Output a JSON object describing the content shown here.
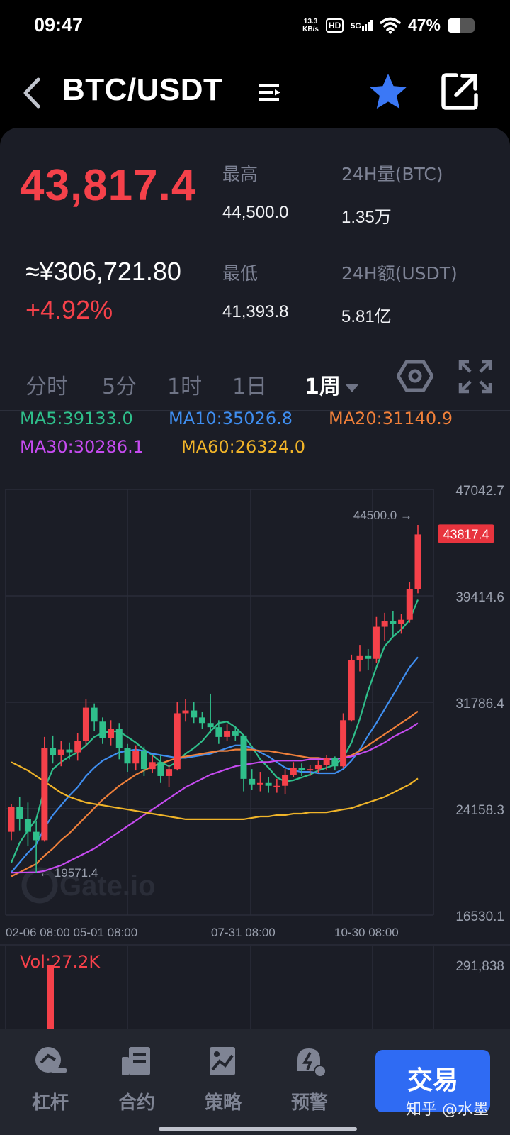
{
  "status_bar": {
    "time": "09:47",
    "net_speed_value": "13.3",
    "net_speed_unit": "KB/s",
    "hd_badge": "HD",
    "network": "5G",
    "battery": "47%",
    "battery_level": 0.47
  },
  "header": {
    "pair": "BTC/USDT",
    "icons": [
      "back-icon",
      "menu-icon",
      "star-icon",
      "share-icon"
    ],
    "star_color": "#3b78f6"
  },
  "ticker": {
    "last_price": "43,817.4",
    "cny_price": "≈¥306,721.80",
    "change": "+4.92%",
    "high_label": "最高",
    "high_value": "44,500.0",
    "low_label": "最低",
    "low_value": "41,393.8",
    "vol24_label": "24H量(BTC)",
    "vol24_value": "1.35万",
    "amt24_label": "24H额(USDT)",
    "amt24_value": "5.81亿",
    "up_color": "#f5414a"
  },
  "intervals": {
    "tabs": [
      "分时",
      "5分",
      "1时",
      "1日",
      "1周"
    ],
    "active": "1周"
  },
  "ma_legend": [
    {
      "label": "MA5:39133.0",
      "color": "#2fbf8b"
    },
    {
      "label": "MA10:35026.8",
      "color": "#3f8ef0"
    },
    {
      "label": "MA20:31140.9",
      "color": "#f0803a"
    },
    {
      "label": "MA30:30286.1",
      "color": "#c64bf0"
    },
    {
      "label": "MA60:26324.0",
      "color": "#f0b429"
    }
  ],
  "chart_data": {
    "type": "candlestick",
    "y_ticks": [
      "47042.7",
      "39414.6",
      "31786.4",
      "24158.3",
      "16530.1"
    ],
    "ylim": [
      16530.1,
      47042.7
    ],
    "x_ticks": [
      "02-06 08:00",
      "05-01 08:00",
      "07-31 08:00",
      "10-30 08:00"
    ],
    "high_marker": "44500.0",
    "low_marker": "19571.4",
    "last_price_tag": "43817.4",
    "watermark": "Gate.io",
    "grid": true,
    "candles": [
      [
        22500,
        24300,
        21900,
        24500
      ],
      [
        24300,
        23400,
        22600,
        25000
      ],
      [
        23400,
        22500,
        21500,
        24600
      ],
      [
        22500,
        21900,
        19571.4,
        23300
      ],
      [
        21900,
        28500,
        21800,
        29300
      ],
      [
        28500,
        28000,
        27400,
        29400
      ],
      [
        28000,
        28400,
        27200,
        29000
      ],
      [
        28400,
        28200,
        27700,
        28900
      ],
      [
        28200,
        29000,
        27600,
        29600
      ],
      [
        29000,
        31400,
        28700,
        32000
      ],
      [
        31400,
        30400,
        29700,
        31700
      ],
      [
        30400,
        29200,
        28800,
        30700
      ],
      [
        29200,
        29900,
        28700,
        30500
      ],
      [
        29900,
        28500,
        27700,
        30300
      ],
      [
        28500,
        27400,
        26800,
        28800
      ],
      [
        27400,
        28300,
        26900,
        28700
      ],
      [
        28300,
        27000,
        26500,
        28600
      ],
      [
        27000,
        27500,
        26700,
        28000
      ],
      [
        27500,
        26500,
        26000,
        28000
      ],
      [
        26500,
        27000,
        25700,
        27300
      ],
      [
        27000,
        31000,
        26900,
        31800
      ],
      [
        31000,
        31200,
        30400,
        32000
      ],
      [
        31200,
        30700,
        30300,
        31800
      ],
      [
        30700,
        30300,
        29900,
        31100
      ],
      [
        30300,
        30000,
        29600,
        32400
      ],
      [
        30000,
        29300,
        28800,
        30500
      ],
      [
        29300,
        29700,
        29000,
        30200
      ],
      [
        29700,
        29400,
        29000,
        30100
      ],
      [
        29400,
        26300,
        25400,
        29500
      ],
      [
        26300,
        25900,
        25500,
        27000
      ],
      [
        25900,
        26000,
        25400,
        26800
      ],
      [
        26000,
        25800,
        25300,
        26400
      ],
      [
        25800,
        25800,
        25300,
        26300
      ],
      [
        25800,
        26600,
        25200,
        27000
      ],
      [
        26600,
        27100,
        26400,
        27500
      ],
      [
        27100,
        26900,
        26500,
        27400
      ],
      [
        26900,
        27000,
        26500,
        27300
      ],
      [
        27000,
        27300,
        26700,
        27600
      ],
      [
        27300,
        27800,
        26900,
        28000
      ],
      [
        27800,
        27200,
        26900,
        27900
      ],
      [
        27200,
        30500,
        27100,
        31000
      ],
      [
        30500,
        34800,
        30400,
        35200
      ],
      [
        34800,
        35100,
        34000,
        35900
      ],
      [
        35100,
        34900,
        34100,
        35600
      ],
      [
        34900,
        37200,
        34600,
        37900
      ],
      [
        37200,
        37600,
        36200,
        38200
      ],
      [
        37600,
        37400,
        36500,
        38300
      ],
      [
        37400,
        37700,
        36700,
        38100
      ],
      [
        37700,
        39900,
        37500,
        40400
      ],
      [
        39900,
        43817.4,
        39600,
        44500
      ]
    ],
    "ma_series": {
      "MA5": [
        20300,
        21700,
        22600,
        23400,
        25600,
        27000,
        27500,
        27900,
        28200,
        28700,
        29300,
        29600,
        29700,
        29700,
        29300,
        28900,
        28400,
        28000,
        27500,
        27200,
        27500,
        28100,
        28500,
        29000,
        29700,
        30300,
        30400,
        30000,
        29400,
        28600,
        27700,
        27100,
        26400,
        26100,
        26200,
        26400,
        26600,
        26900,
        27100,
        27300,
        27800,
        28900,
        30600,
        32600,
        34300,
        35800,
        36500,
        37000,
        37700,
        39133
      ],
      "MA10": [
        19600,
        20300,
        21000,
        21600,
        22800,
        23700,
        24400,
        25100,
        25700,
        26500,
        27100,
        27600,
        27900,
        28200,
        28300,
        28400,
        28300,
        28100,
        28000,
        27900,
        27800,
        27800,
        27900,
        28000,
        28100,
        28300,
        28500,
        28700,
        28700,
        28500,
        28200,
        27900,
        27500,
        27100,
        26900,
        26800,
        26800,
        26700,
        26700,
        26700,
        27000,
        27600,
        28400,
        29400,
        30300,
        31300,
        32300,
        33300,
        34300,
        35026.8
      ],
      "MA20": [
        19300,
        19600,
        19900,
        20200,
        20800,
        21300,
        21900,
        22400,
        23000,
        23600,
        24200,
        24800,
        25300,
        25800,
        26200,
        26600,
        26900,
        27200,
        27400,
        27600,
        27800,
        27900,
        28000,
        28100,
        28200,
        28300,
        28300,
        28400,
        28400,
        28400,
        28300,
        28300,
        28200,
        28100,
        28000,
        27900,
        27800,
        27800,
        27700,
        27700,
        27800,
        28000,
        28300,
        28700,
        29100,
        29500,
        29900,
        30300,
        30700,
        31140.9
      ],
      "MA30": [
        19571.4,
        19580,
        19590,
        19600,
        19700,
        19900,
        20100,
        20400,
        20700,
        21000,
        21300,
        21700,
        22100,
        22500,
        22900,
        23300,
        23700,
        24100,
        24500,
        24900,
        25300,
        25700,
        26000,
        26300,
        26600,
        26800,
        27000,
        27200,
        27300,
        27400,
        27500,
        27500,
        27600,
        27600,
        27600,
        27600,
        27700,
        27700,
        27700,
        27700,
        27800,
        27900,
        28100,
        28300,
        28600,
        28900,
        29300,
        29600,
        29900,
        30286.1
      ],
      "MA60": [
        27500,
        27200,
        26900,
        26500,
        26100,
        25700,
        25300,
        25000,
        24800,
        24600,
        24500,
        24400,
        24300,
        24200,
        24100,
        24000,
        23900,
        23800,
        23700,
        23600,
        23500,
        23400,
        23400,
        23400,
        23400,
        23400,
        23400,
        23400,
        23400,
        23500,
        23600,
        23600,
        23700,
        23700,
        23800,
        23800,
        23900,
        23900,
        23900,
        24000,
        24100,
        24200,
        24400,
        24600,
        24800,
        25000,
        25300,
        25600,
        25900,
        26324
      ]
    }
  },
  "volume": {
    "label": "Vol:27.2K",
    "max_tick": "291,838",
    "last_volume_fraction": 0.093
  },
  "bottom_nav": {
    "items": [
      {
        "label": "杠杆",
        "icon": "leverage-icon"
      },
      {
        "label": "合约",
        "icon": "contract-icon"
      },
      {
        "label": "策略",
        "icon": "strategy-icon"
      },
      {
        "label": "预警",
        "icon": "alert-icon"
      }
    ],
    "trade_label": "交易",
    "watermark": "知乎 @水墨",
    "trade_color": "#2f6bf3"
  }
}
